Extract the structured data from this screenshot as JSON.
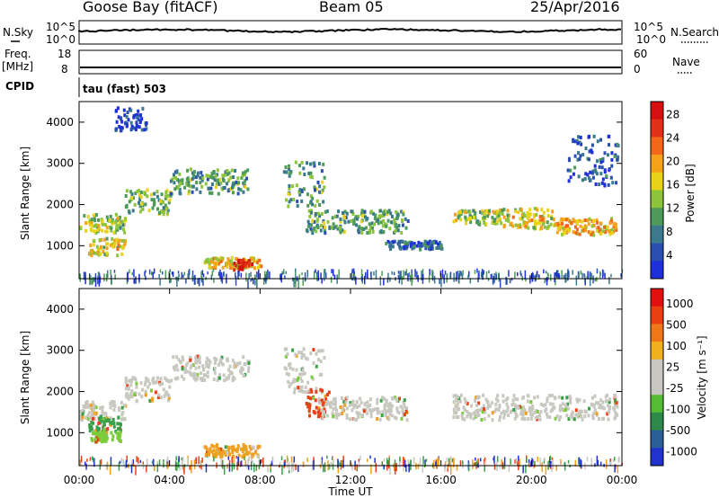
{
  "header": {
    "station": "Goose Bay (fitACF)",
    "beam": "Beam 05",
    "date": "25/Apr/2016"
  },
  "top_panels": {
    "nsky_label": "N.Sky",
    "nsky_ticks": [
      "10^5",
      "10^0"
    ],
    "nsearch_label": "N.Search",
    "nsearch_ticks": [
      "10^5",
      "10^0"
    ],
    "freq_label": "Freq.",
    "freq_unit": "[MHz]",
    "freq_ticks": [
      "18",
      "8"
    ],
    "nave_label": "Nave",
    "nave_ticks": [
      "60",
      "0"
    ],
    "cpid_label": "CPID",
    "cpid_text": "tau (fast) 503"
  },
  "chart_data": [
    {
      "type": "heatmap",
      "panel": "power",
      "ylabel": "Slant Range [km]",
      "y_ticks": [
        "1000",
        "2000",
        "3000",
        "4000"
      ],
      "ylim": [
        200,
        4500
      ],
      "colorbar_label": "Power [dB]",
      "colorbar_ticks": [
        "4",
        "8",
        "12",
        "16",
        "20",
        "24",
        "28"
      ],
      "colorbar_colors": [
        "#1f2fd9",
        "#2a4fb0",
        "#3b7a8c",
        "#4e9a5a",
        "#8cc43c",
        "#e8d21a",
        "#f5a21a",
        "#f06818",
        "#e03018",
        "#d41010"
      ],
      "bands": [
        {
          "t": [
            0.0,
            2.0
          ],
          "r": [
            1350,
            1800
          ],
          "level": 0.45
        },
        {
          "t": [
            0.4,
            2.0
          ],
          "r": [
            800,
            1250
          ],
          "level": 0.55
        },
        {
          "t": [
            2.0,
            4.0
          ],
          "r": [
            1800,
            2400
          ],
          "level": 0.4
        },
        {
          "t": [
            4.0,
            7.5
          ],
          "r": [
            2300,
            2900
          ],
          "level": 0.35
        },
        {
          "t": [
            5.5,
            8.0
          ],
          "r": [
            500,
            750
          ],
          "level": 0.6
        },
        {
          "t": [
            6.8,
            7.6
          ],
          "r": [
            450,
            700
          ],
          "level": 0.95
        },
        {
          "t": [
            9.0,
            10.8
          ],
          "r": [
            2000,
            3100
          ],
          "level": 0.35
        },
        {
          "t": [
            10.0,
            14.5
          ],
          "r": [
            1350,
            1900
          ],
          "level": 0.35
        },
        {
          "t": [
            13.5,
            16.0
          ],
          "r": [
            950,
            1150
          ],
          "level": 0.2
        },
        {
          "t": [
            16.5,
            18.5
          ],
          "r": [
            1550,
            1900
          ],
          "level": 0.45
        },
        {
          "t": [
            18.5,
            21.0
          ],
          "r": [
            1450,
            1950
          ],
          "level": 0.55
        },
        {
          "t": [
            21.0,
            23.8
          ],
          "r": [
            1300,
            1700
          ],
          "level": 0.6
        },
        {
          "t": [
            21.5,
            23.8
          ],
          "r": [
            2500,
            3700
          ],
          "level": 0.15
        },
        {
          "t": [
            1.5,
            3.0
          ],
          "r": [
            3800,
            4400
          ],
          "level": 0.1
        }
      ]
    },
    {
      "type": "heatmap",
      "panel": "velocity",
      "ylabel": "Slant Range [km]",
      "y_ticks": [
        "1000",
        "2000",
        "3000",
        "4000"
      ],
      "ylim": [
        200,
        4500
      ],
      "colorbar_label": "Velocity [m s⁻¹]",
      "colorbar_ticks": [
        "1000",
        "500",
        "100",
        "25",
        "-25",
        "-100",
        "-500",
        "-1000"
      ],
      "colorbar_colors": [
        "#2233cc",
        "#2a5f9a",
        "#2f8a4a",
        "#55bb33",
        "#c8c8c0",
        "#c8c8c0",
        "#f0b020",
        "#f07818",
        "#e84010",
        "#e01010"
      ],
      "bands": [
        {
          "t": [
            0.0,
            2.0
          ],
          "r": [
            1350,
            1800
          ],
          "vel": "gray"
        },
        {
          "t": [
            0.4,
            1.8
          ],
          "r": [
            1050,
            1450
          ],
          "vel": "green"
        },
        {
          "t": [
            0.4,
            1.8
          ],
          "r": [
            800,
            1050
          ],
          "vel": "lightgreen"
        },
        {
          "t": [
            2.0,
            4.0
          ],
          "r": [
            1800,
            2400
          ],
          "vel": "gray"
        },
        {
          "t": [
            4.0,
            7.5
          ],
          "r": [
            2300,
            2900
          ],
          "vel": "gray"
        },
        {
          "t": [
            5.5,
            8.0
          ],
          "r": [
            450,
            750
          ],
          "vel": "orange"
        },
        {
          "t": [
            9.0,
            10.8
          ],
          "r": [
            2000,
            3100
          ],
          "vel": "gray"
        },
        {
          "t": [
            10.0,
            11.0
          ],
          "r": [
            1400,
            2100
          ],
          "vel": "red"
        },
        {
          "t": [
            10.5,
            14.5
          ],
          "r": [
            1350,
            1900
          ],
          "vel": "gray"
        },
        {
          "t": [
            16.5,
            23.8
          ],
          "r": [
            1350,
            1950
          ],
          "vel": "gray"
        }
      ]
    }
  ],
  "x_ticks": [
    "00:00",
    "04:00",
    "08:00",
    "12:00",
    "16:00",
    "20:00",
    "00:00"
  ],
  "x_label": "Time UT"
}
